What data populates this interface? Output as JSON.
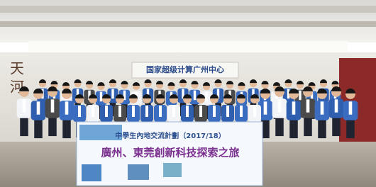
{
  "scene": {
    "wall_sign": "国家超级计算广州中心",
    "calligraphy": [
      "天",
      "河"
    ],
    "banner": {
      "title": "中學生內地交流計劃（2017/18）",
      "subtitle": "廣州、東莞創新科技探索之旅"
    }
  }
}
